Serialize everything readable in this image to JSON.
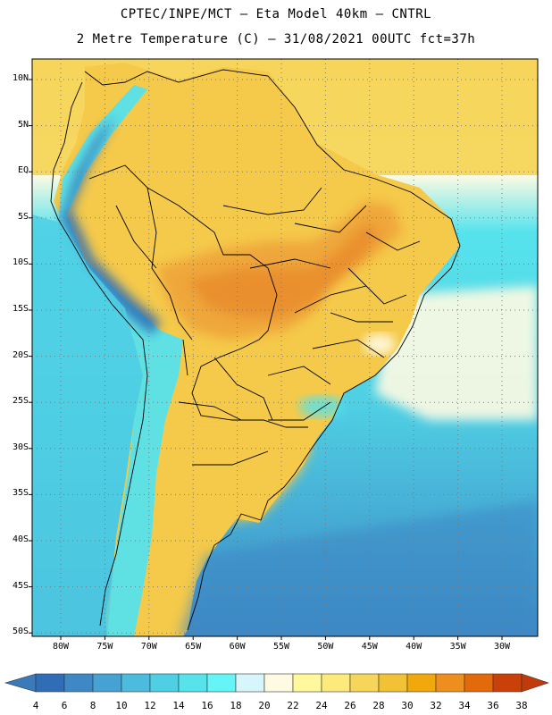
{
  "title_line1": "CPTEC/INPE/MCT  –  Eta Model 40km – CNTRL",
  "title_line2": "2 Metre Temperature (C) – 31/08/2021 00UTC fct=37h",
  "lat_labels": [
    "10N",
    "5N",
    "EQ",
    "5S",
    "10S",
    "15S",
    "20S",
    "25S",
    "30S",
    "35S",
    "40S",
    "45S",
    "50S"
  ],
  "lon_labels": [
    "80W",
    "75W",
    "70W",
    "65W",
    "60W",
    "55W",
    "50W",
    "45W",
    "40W",
    "35W",
    "30W"
  ],
  "colorbar": {
    "ticks": [
      "4",
      "6",
      "8",
      "10",
      "12",
      "14",
      "16",
      "18",
      "20",
      "22",
      "24",
      "26",
      "28",
      "30",
      "32",
      "34",
      "36",
      "38"
    ],
    "colors": [
      "#2f6eb6",
      "#3d88c5",
      "#45a2d3",
      "#4dbbdd",
      "#4fcfe4",
      "#56e3ec",
      "#66f5f6",
      "#d6f6fb",
      "#fffbe3",
      "#fff89c",
      "#fcea7c",
      "#f5d55a",
      "#f1c235",
      "#f0a80d",
      "#ee8e1f",
      "#e26a0a",
      "#c94108"
    ],
    "low_color": "#3a7ab9",
    "high_color": "#c03a0a"
  },
  "field_colors": {
    "land_warm": "#f5c94a",
    "land_hot": "#efa63a",
    "land_very_hot": "#e88a2a",
    "ocean_tropic": "#f5d55a",
    "ocean_warm": "#fffbe3",
    "ocean_mid": "#56e3ec",
    "ocean_cool": "#4fcfe4",
    "ocean_cold": "#3d88c5",
    "andes": "#2f6eb6"
  }
}
